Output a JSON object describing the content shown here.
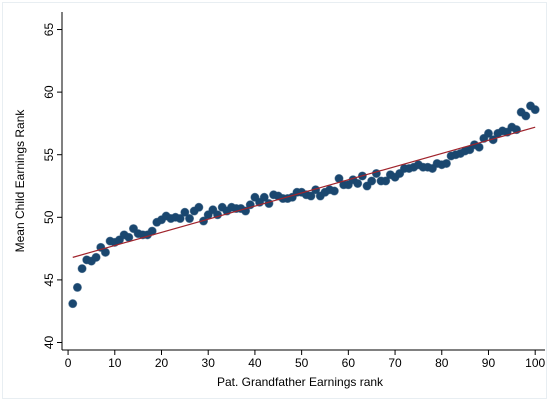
{
  "chart_data": {
    "type": "scatter",
    "x_label": "Pat. Grandfather Earnings rank",
    "y_label": "Mean Child Earnings Rank",
    "x": [
      1,
      2,
      3,
      4,
      5,
      6,
      7,
      8,
      9,
      10,
      11,
      12,
      13,
      14,
      15,
      16,
      17,
      18,
      19,
      20,
      21,
      22,
      23,
      24,
      25,
      26,
      27,
      28,
      29,
      30,
      31,
      32,
      33,
      34,
      35,
      36,
      37,
      38,
      39,
      40,
      41,
      42,
      43,
      44,
      45,
      46,
      47,
      48,
      49,
      50,
      51,
      52,
      53,
      54,
      55,
      56,
      57,
      58,
      59,
      60,
      61,
      62,
      63,
      64,
      65,
      66,
      67,
      68,
      69,
      70,
      71,
      72,
      73,
      74,
      75,
      76,
      77,
      78,
      79,
      80,
      81,
      82,
      83,
      84,
      85,
      86,
      87,
      88,
      89,
      90,
      91,
      92,
      93,
      94,
      95,
      96,
      97,
      98,
      99,
      100
    ],
    "series": [
      {
        "color": "#1a476f",
        "values": [
          43.1,
          44.4,
          45.9,
          46.6,
          46.5,
          46.8,
          47.6,
          47.2,
          48.1,
          48.0,
          48.2,
          48.6,
          48.4,
          49.1,
          48.7,
          48.6,
          48.6,
          48.9,
          49.6,
          49.8,
          50.1,
          49.9,
          50.0,
          49.9,
          50.4,
          49.9,
          50.5,
          50.8,
          49.7,
          50.2,
          50.6,
          50.2,
          50.8,
          50.5,
          50.8,
          50.7,
          50.7,
          50.5,
          51.0,
          51.6,
          51.2,
          51.6,
          51.1,
          51.8,
          51.7,
          51.5,
          51.5,
          51.6,
          52.0,
          52.0,
          51.8,
          51.7,
          52.2,
          51.7,
          52.0,
          52.2,
          52.1,
          53.1,
          52.6,
          52.6,
          53.0,
          52.7,
          53.3,
          52.5,
          52.9,
          53.5,
          52.9,
          52.9,
          53.4,
          53.2,
          53.5,
          53.9,
          53.9,
          54.0,
          54.2,
          54.0,
          54.0,
          53.9,
          54.3,
          54.2,
          54.3,
          54.9,
          55.0,
          55.1,
          55.3,
          55.4,
          55.8,
          55.6,
          56.3,
          56.7,
          56.2,
          56.7,
          56.9,
          56.8,
          57.2,
          57.0,
          58.4,
          58.1,
          58.9,
          58.6
        ]
      }
    ],
    "fit_line": {
      "color": "#a0242c",
      "x": [
        1,
        100
      ],
      "values": [
        46.8,
        57.2
      ]
    },
    "xlim": [
      -1.3,
      102.1
    ],
    "ylim": [
      39.4,
      66.4
    ],
    "xticks": [
      0,
      10,
      20,
      30,
      40,
      50,
      60,
      70,
      80,
      90,
      100
    ],
    "yticks": [
      40,
      45,
      50,
      55,
      60,
      65
    ]
  }
}
